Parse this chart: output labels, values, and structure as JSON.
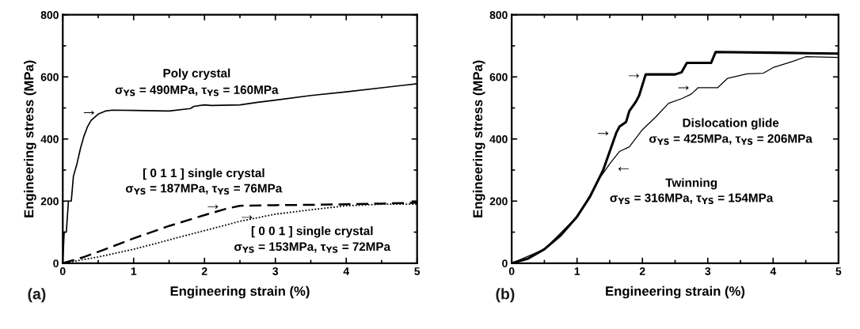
{
  "chart_data": [
    {
      "type": "line",
      "xlabel": "Engineering strain (%)",
      "ylabel": "Engineering stress (MPa)",
      "xlim": [
        0,
        5
      ],
      "ylim": [
        0,
        800
      ],
      "xticks": [
        0,
        1,
        2,
        3,
        4,
        5
      ],
      "yticks": [
        0,
        200,
        400,
        600,
        800
      ],
      "grid": false,
      "legend": false,
      "marker": "none",
      "series": [
        {
          "color": "#000000",
          "line_style": "solid",
          "x": [
            0,
            0.02,
            0.05,
            0.08,
            0.12,
            0.15,
            0.2,
            0.25,
            0.3,
            0.35,
            0.4,
            0.5,
            0.6,
            0.7,
            1.0,
            1.5,
            1.8,
            1.85,
            2.0,
            2.1,
            2.5,
            2.75,
            3.0,
            3.5,
            4.0,
            4.5,
            5.0
          ],
          "values": [
            0,
            100,
            100,
            200,
            200,
            280,
            320,
            370,
            410,
            440,
            460,
            480,
            490,
            493,
            492,
            490,
            498,
            505,
            510,
            508,
            510,
            518,
            525,
            540,
            552,
            565,
            578
          ]
        },
        {
          "color": "#000000",
          "line_style": "dashed",
          "x": [
            0,
            0.3,
            0.6,
            1.0,
            1.5,
            2.0,
            2.3,
            2.5,
            3.0,
            3.5,
            4.0,
            4.5,
            5.0
          ],
          "values": [
            0,
            20,
            45,
            80,
            120,
            155,
            175,
            185,
            187,
            188,
            190,
            192,
            195
          ]
        },
        {
          "color": "#000000",
          "line_style": "dotted",
          "x": [
            0,
            0.5,
            1.0,
            1.5,
            2.0,
            2.5,
            3.0,
            3.5,
            4.0,
            4.5,
            5.0
          ],
          "values": [
            0,
            20,
            45,
            75,
            105,
            135,
            158,
            172,
            185,
            190,
            190
          ]
        }
      ],
      "annotations": [
        "Poly crystal",
        "σ$_{YS}$ = 490MPa, τ$_{YS}$ = 160MPa",
        "→",
        "[ 0 1 1 ] single crystal",
        "σ$_{YS}$ = 187MPa, τ$_{YS}$ = 76MPa",
        "→",
        "[ 0 0 1 ] single crystal",
        "σ$_{YS}$ = 153MPa, τ$_{YS}$ = 72MPa",
        "→",
        "(a)"
      ]
    },
    {
      "type": "line",
      "xlabel": "Engineering strain (%)",
      "ylabel": "Engineering stress (MPa)",
      "xlim": [
        0,
        5
      ],
      "ylim": [
        0,
        800
      ],
      "xticks": [
        0,
        1,
        2,
        3,
        4,
        5
      ],
      "yticks": [
        0,
        200,
        400,
        600,
        800
      ],
      "grid": false,
      "legend": false,
      "marker": "none",
      "series": [
        {
          "color": "#000000",
          "line_style": "solid",
          "x": [
            0,
            0.25,
            0.5,
            0.75,
            1.0,
            1.2,
            1.4,
            1.55,
            1.6,
            1.65,
            1.75,
            1.8,
            1.9,
            1.95,
            2.05,
            2.5,
            2.6,
            2.68,
            3.05,
            3.12,
            4.0,
            5.0
          ],
          "values": [
            0,
            15,
            45,
            90,
            150,
            215,
            300,
            390,
            420,
            440,
            455,
            490,
            520,
            540,
            608,
            608,
            615,
            645,
            645,
            680,
            678,
            675
          ]
        },
        {
          "color": "#000000",
          "line_style": "solid",
          "x": [
            0,
            0.5,
            1.0,
            1.15,
            1.3,
            1.5,
            1.65,
            1.8,
            2.0,
            2.2,
            2.4,
            2.6,
            2.75,
            2.85,
            3.15,
            3.3,
            3.6,
            3.85,
            4.0,
            4.3,
            4.5,
            5.0
          ],
          "values": [
            0,
            45,
            150,
            200,
            260,
            320,
            360,
            375,
            430,
            470,
            515,
            530,
            545,
            565,
            565,
            595,
            610,
            612,
            630,
            650,
            665,
            663
          ]
        }
      ],
      "annotations": [
        "Dislocation glide",
        "σ$_{YS}$ = 425MPa, τ$_{YS}$ = 206MPa",
        "→",
        "→",
        "Twinning",
        "σ$_{YS}$ = 316MPa, τ$_{YS}$ = 154MPa",
        "←",
        "→",
        "(b)"
      ]
    }
  ]
}
